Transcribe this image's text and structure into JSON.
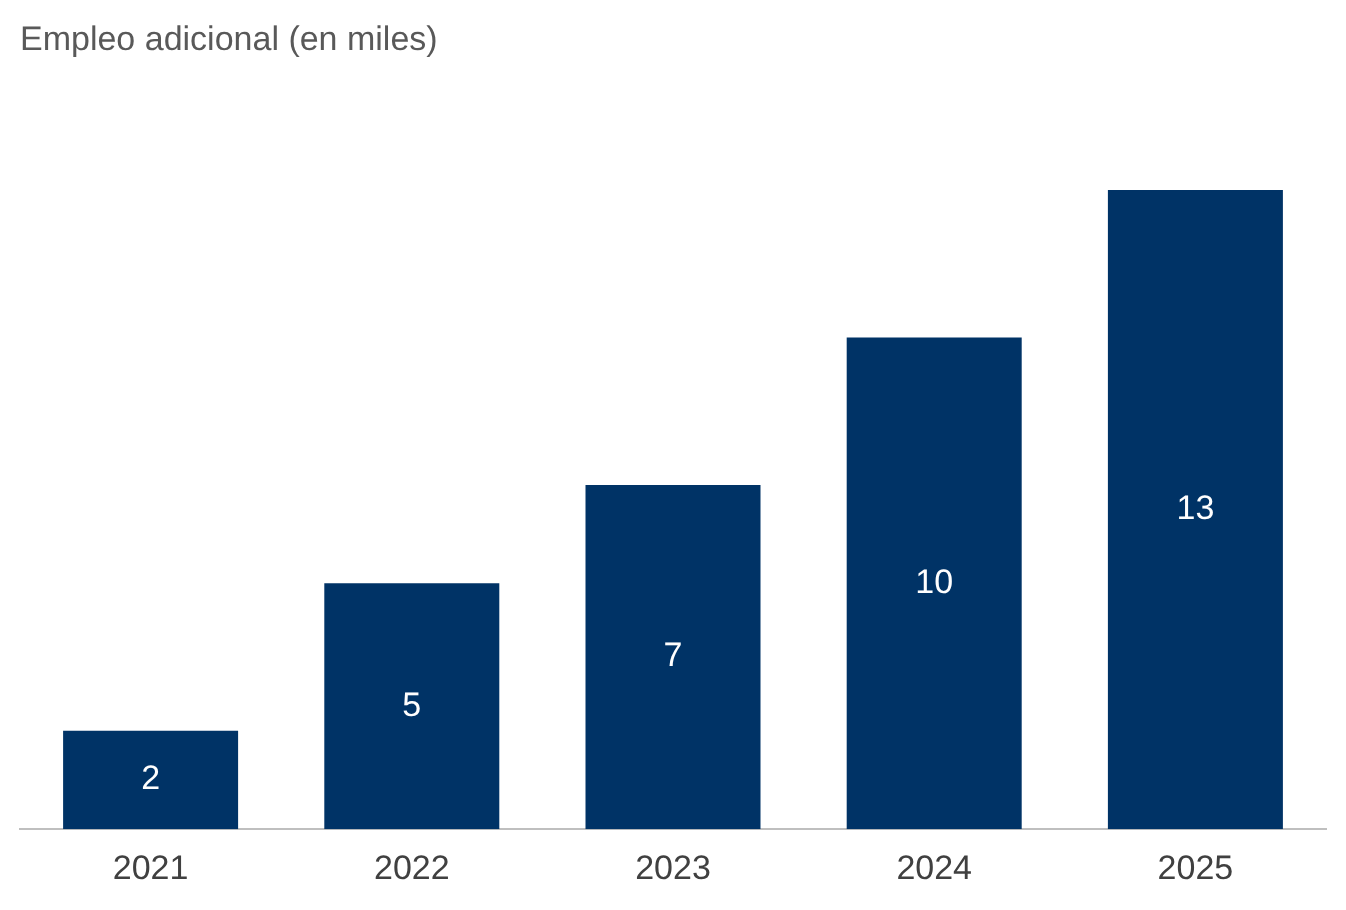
{
  "chart_data": {
    "type": "bar",
    "title": "Empleo adicional (en miles)",
    "categories": [
      "2021",
      "2022",
      "2023",
      "2024",
      "2025"
    ],
    "values": [
      2,
      5,
      7,
      10,
      13
    ],
    "color": "#003366",
    "data_labels": true,
    "grid": false,
    "legend": false
  }
}
